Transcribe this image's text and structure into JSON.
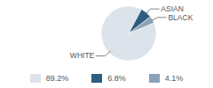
{
  "chart_data": {
    "type": "pie",
    "categories": [
      "WHITE",
      "ASIAN",
      "BLACK"
    ],
    "values": [
      89.2,
      6.8,
      4.1
    ],
    "value_labels": [
      "89.2%",
      "6.8%",
      "4.1%"
    ],
    "colors": [
      "#dde3ea",
      "#2f5d80",
      "#8ba3b8"
    ],
    "legend": "bottom"
  }
}
